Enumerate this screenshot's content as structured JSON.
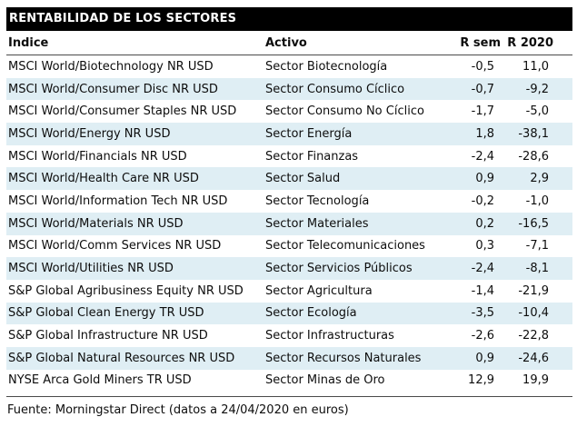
{
  "title": "RENTABILIDAD DE LOS SECTORES",
  "table": {
    "columns": [
      "Índice",
      "Activo",
      "R sem",
      "R 2020"
    ],
    "rows": [
      [
        "MSCI World/Biotechnology NR USD",
        "Sector Biotecnología",
        "-0,5",
        "11,0"
      ],
      [
        "MSCI World/Consumer Disc NR USD",
        "Sector Consumo Cíclico",
        "-0,7",
        "-9,2"
      ],
      [
        "MSCI World/Consumer Staples NR USD",
        "Sector Consumo No Cíclico",
        "-1,7",
        "-5,0"
      ],
      [
        "MSCI World/Energy NR USD",
        "Sector Energía",
        "1,8",
        "-38,1"
      ],
      [
        "MSCI World/Financials NR USD",
        "Sector Finanzas",
        "-2,4",
        "-28,6"
      ],
      [
        "MSCI World/Health Care NR USD",
        "Sector Salud",
        "0,9",
        "2,9"
      ],
      [
        "MSCI World/Information Tech NR USD",
        "Sector Tecnología",
        "-0,2",
        "-1,0"
      ],
      [
        "MSCI World/Materials NR USD",
        "Sector Materiales",
        "0,2",
        "-16,5"
      ],
      [
        "MSCI World/Comm Services NR USD",
        "Sector Telecomunicaciones",
        "0,3",
        "-7,1"
      ],
      [
        "MSCI World/Utilities NR USD",
        "Sector Servicios Públicos",
        "-2,4",
        "-8,1"
      ],
      [
        "S&P Global Agribusiness Equity NR USD",
        "Sector Agricultura",
        "-1,4",
        "-21,9"
      ],
      [
        "S&P Global Clean Energy TR USD",
        "Sector Ecología",
        "-3,5",
        "-10,4"
      ],
      [
        "S&P Global Infrastructure NR USD",
        "Sector Infrastructuras",
        "-2,6",
        "-22,8"
      ],
      [
        "S&P Global Natural Resources NR USD",
        "Sector Recursos Naturales",
        "0,9",
        "-24,6"
      ],
      [
        "NYSE Arca Gold Miners TR USD",
        "Sector Minas de Oro",
        "12,9",
        "19,9"
      ]
    ]
  },
  "footer": "Fuente: Morningstar Direct (datos a 24/04/2020 en euros)",
  "colors": {
    "title_bar_bg": "#000000",
    "title_text": "#ffffff",
    "stripe": "#dfeef4",
    "rule": "#4a4a4a",
    "text": "#0d0d0d"
  },
  "chart_data": {
    "type": "table",
    "title": "RENTABILIDAD DE LOS SECTORES",
    "columns": [
      "Índice",
      "Activo",
      "R sem",
      "R 2020"
    ],
    "rows": [
      [
        "MSCI World/Biotechnology NR USD",
        "Sector Biotecnología",
        -0.5,
        11.0
      ],
      [
        "MSCI World/Consumer Disc NR USD",
        "Sector Consumo Cíclico",
        -0.7,
        -9.2
      ],
      [
        "MSCI World/Consumer Staples NR USD",
        "Sector Consumo No Cíclico",
        -1.7,
        -5.0
      ],
      [
        "MSCI World/Energy NR USD",
        "Sector Energía",
        1.8,
        -38.1
      ],
      [
        "MSCI World/Financials NR USD",
        "Sector Finanzas",
        -2.4,
        -28.6
      ],
      [
        "MSCI World/Health Care NR USD",
        "Sector Salud",
        0.9,
        2.9
      ],
      [
        "MSCI World/Information Tech NR USD",
        "Sector Tecnología",
        -0.2,
        -1.0
      ],
      [
        "MSCI World/Materials NR USD",
        "Sector Materiales",
        0.2,
        -16.5
      ],
      [
        "MSCI World/Comm Services NR USD",
        "Sector Telecomunicaciones",
        0.3,
        -7.1
      ],
      [
        "MSCI World/Utilities NR USD",
        "Sector Servicios Públicos",
        -2.4,
        -8.1
      ],
      [
        "S&P Global Agribusiness Equity NR USD",
        "Sector Agricultura",
        -1.4,
        -21.9
      ],
      [
        "S&P Global Clean Energy TR USD",
        "Sector Ecología",
        -3.5,
        -10.4
      ],
      [
        "S&P Global Infrastructure NR USD",
        "Sector Infrastructuras",
        -2.6,
        -22.8
      ],
      [
        "S&P Global Natural Resources NR USD",
        "Sector Recursos Naturales",
        0.9,
        -24.6
      ],
      [
        "NYSE Arca Gold Miners TR USD",
        "Sector Minas de Oro",
        12.9,
        19.9
      ]
    ],
    "numeric_series": [
      {
        "name": "R sem",
        "values": [
          -0.5,
          -0.7,
          -1.7,
          1.8,
          -2.4,
          0.9,
          -0.2,
          0.2,
          0.3,
          -2.4,
          -1.4,
          -3.5,
          -2.6,
          0.9,
          12.9
        ]
      },
      {
        "name": "R 2020",
        "values": [
          11.0,
          -9.2,
          -5.0,
          -38.1,
          -28.6,
          2.9,
          -1.0,
          -16.5,
          -7.1,
          -8.1,
          -21.9,
          -10.4,
          -22.8,
          -24.6,
          19.9
        ]
      }
    ],
    "decimal_separator": ",",
    "source": "Fuente: Morningstar Direct (datos a 24/04/2020 en euros)"
  }
}
